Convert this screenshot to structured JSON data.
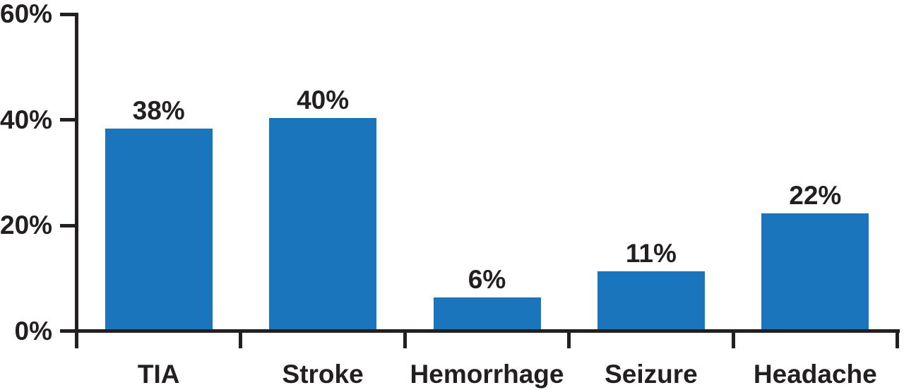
{
  "chart_data": {
    "type": "bar",
    "categories": [
      "TIA",
      "Stroke",
      "Hemorrhage",
      "Seizure",
      "Headache"
    ],
    "values": [
      38,
      40,
      6,
      11,
      22
    ],
    "value_labels": [
      "38%",
      "40%",
      "6%",
      "11%",
      "22%"
    ],
    "title": "",
    "xlabel": "",
    "ylabel": "",
    "ylim": [
      0,
      60
    ],
    "yticks": [
      0,
      20,
      40,
      60
    ],
    "ytick_labels": [
      "0%",
      "20%",
      "40%",
      "60%"
    ],
    "grid": false,
    "legend": null,
    "bar_color": "#1B75BC",
    "axis_color": "#231F20",
    "text_color": "#231F20",
    "background": "#FFFFFF"
  }
}
